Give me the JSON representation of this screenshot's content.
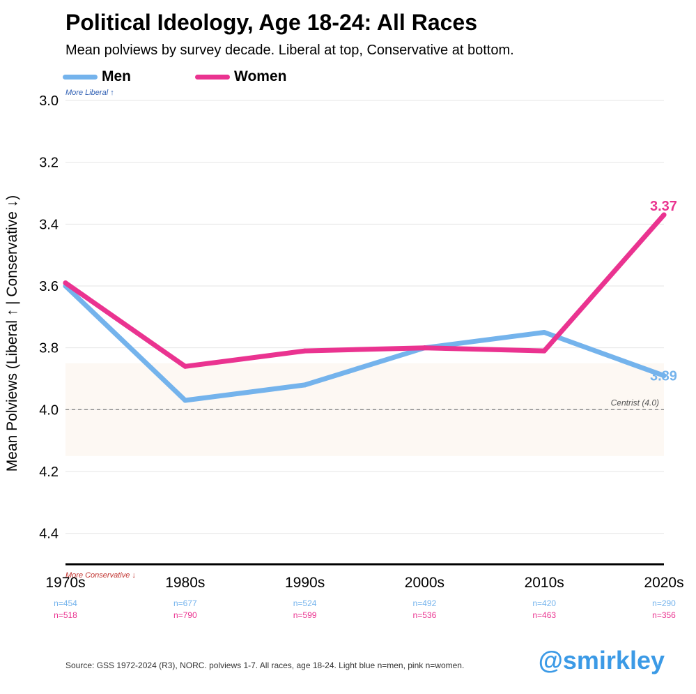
{
  "chart_data": {
    "type": "line",
    "title": "Political Ideology, Age 18-24: All Races",
    "subtitle": "Mean polviews by survey decade. Liberal at top, Conservative at bottom.",
    "xlabel": "",
    "ylabel": "Mean Polviews (Liberal ↑ | Conservative ↓)",
    "categories": [
      "1970s",
      "1980s",
      "1990s",
      "2000s",
      "2010s",
      "2020s"
    ],
    "ylim": [
      3.0,
      4.5
    ],
    "y_inverted": true,
    "y_ticks": [
      "3.0",
      "3.2",
      "3.4",
      "3.6",
      "3.8",
      "4.0",
      "4.2",
      "4.4"
    ],
    "y_tick_values": [
      3.0,
      3.2,
      3.4,
      3.6,
      3.8,
      4.0,
      4.2,
      4.4
    ],
    "grid": true,
    "legend_placement": "top-left",
    "series": [
      {
        "name": "Men",
        "color": "#74b3ec",
        "values": [
          3.6,
          3.97,
          3.92,
          3.8,
          3.75,
          3.89
        ],
        "end_label": "3.89",
        "n": [
          "n=454",
          "n=677",
          "n=524",
          "n=492",
          "n=420",
          "n=290"
        ]
      },
      {
        "name": "Women",
        "color": "#ea3390",
        "values": [
          3.59,
          3.86,
          3.81,
          3.8,
          3.81,
          3.37
        ],
        "end_label": "3.37",
        "n": [
          "n=518",
          "n=790",
          "n=599",
          "n=536",
          "n=463",
          "n=356"
        ]
      }
    ],
    "centrist_band": [
      3.85,
      4.15
    ],
    "centrist_line": {
      "value": 4.0,
      "label": "Centrist (4.0)"
    },
    "annotations": {
      "top": "More Liberal ↑",
      "bottom": "More Conservative ↓"
    }
  },
  "footer": {
    "source": "Source: GSS 1972-2024 (R3), NORC. polviews 1-7. All races, age 18-24. Light blue n=men, pink n=women.",
    "handle": "@smirkley"
  },
  "colors": {
    "men": "#74b3ec",
    "women": "#ea3390",
    "liberal_note": "#2f5fb3",
    "conservative_note": "#c0302c",
    "band": "#fdf8f3",
    "handle": "#3b9ae6"
  }
}
